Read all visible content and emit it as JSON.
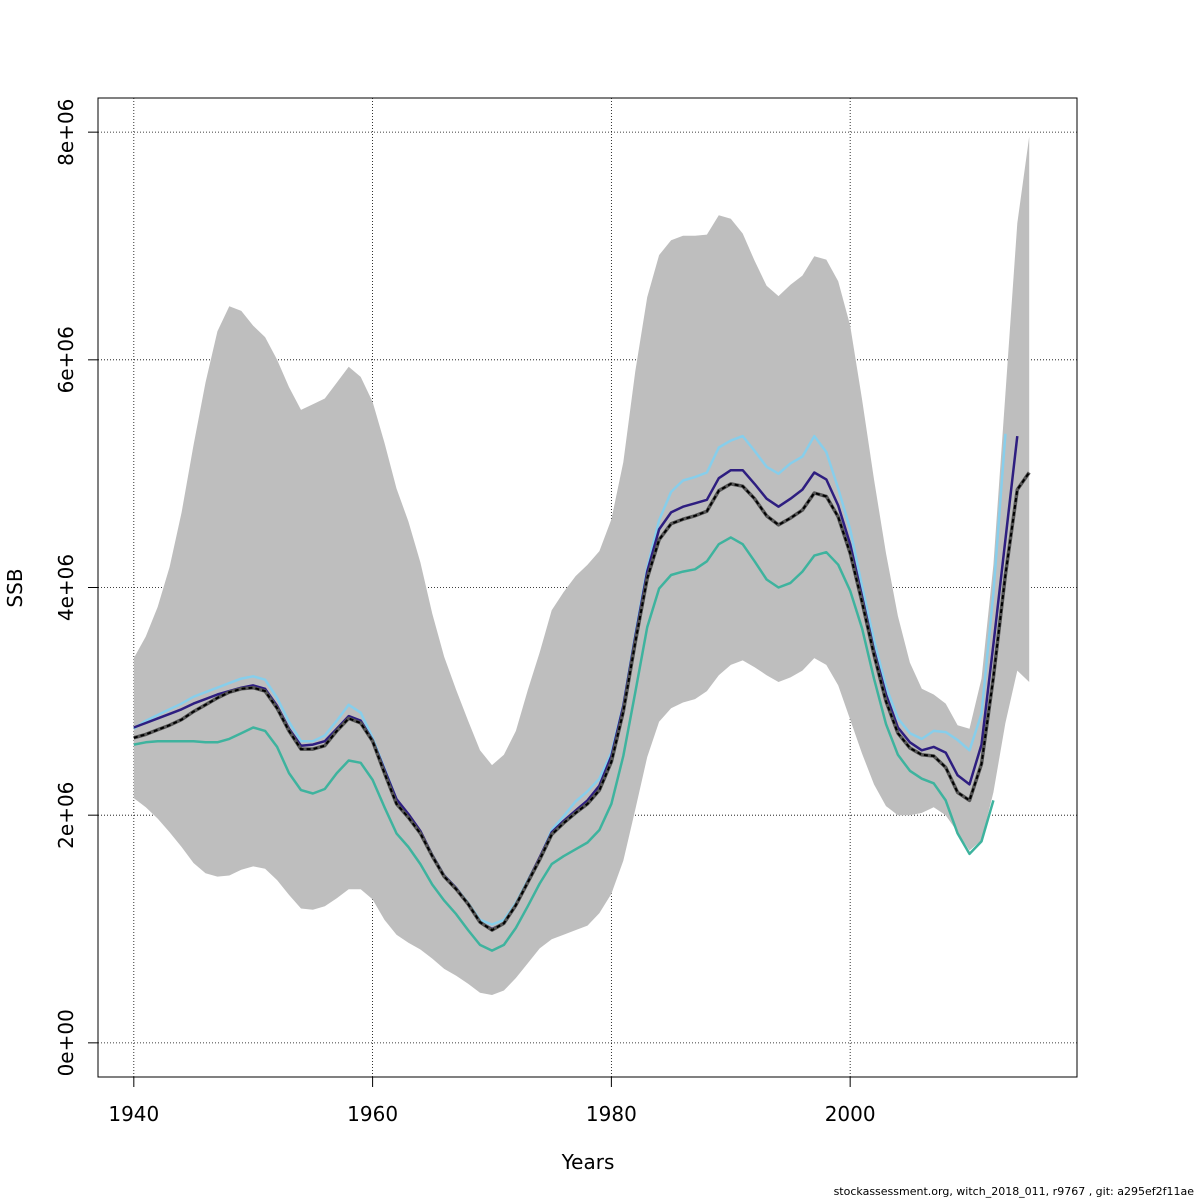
{
  "chart_data": {
    "type": "line",
    "xlabel": "Years",
    "ylabel": "SSB",
    "xlim": [
      1937,
      2019
    ],
    "ylim": [
      -300000,
      8300000
    ],
    "x_ticks": [
      1940,
      1960,
      1980,
      2000
    ],
    "y_ticks": [
      0,
      2000000,
      4000000,
      6000000,
      8000000
    ],
    "y_tick_labels": [
      "0e+00",
      "2e+06",
      "4e+06",
      "6e+06",
      "8e+06"
    ],
    "grid": true,
    "band": {
      "color": "#bebebe",
      "x": [
        1940,
        1941,
        1942,
        1943,
        1944,
        1945,
        1946,
        1947,
        1948,
        1949,
        1950,
        1951,
        1952,
        1953,
        1954,
        1955,
        1956,
        1957,
        1958,
        1959,
        1960,
        1961,
        1962,
        1963,
        1964,
        1965,
        1966,
        1967,
        1968,
        1969,
        1970,
        1971,
        1972,
        1973,
        1974,
        1975,
        1976,
        1977,
        1978,
        1979,
        1980,
        1981,
        1982,
        1983,
        1984,
        1985,
        1986,
        1987,
        1988,
        1989,
        1990,
        1991,
        1992,
        1993,
        1994,
        1995,
        1996,
        1997,
        1998,
        1999,
        2000,
        2001,
        2002,
        2003,
        2004,
        2005,
        2006,
        2007,
        2008,
        2009,
        2010,
        2011,
        2012,
        2013,
        2014,
        2015
      ],
      "upper": [
        3380000,
        3570000,
        3830000,
        4180000,
        4660000,
        5250000,
        5800000,
        6250000,
        6470000,
        6430000,
        6300000,
        6200000,
        6000000,
        5760000,
        5560000,
        5610000,
        5660000,
        5800000,
        5940000,
        5850000,
        5630000,
        5270000,
        4870000,
        4580000,
        4220000,
        3770000,
        3390000,
        3100000,
        2830000,
        2570000,
        2440000,
        2530000,
        2740000,
        3100000,
        3430000,
        3800000,
        3960000,
        4100000,
        4200000,
        4320000,
        4600000,
        5100000,
        5900000,
        6550000,
        6920000,
        7050000,
        7090000,
        7090000,
        7100000,
        7270000,
        7240000,
        7110000,
        6870000,
        6650000,
        6560000,
        6660000,
        6740000,
        6910000,
        6880000,
        6690000,
        6300000,
        5650000,
        4950000,
        4300000,
        3750000,
        3340000,
        3110000,
        3060000,
        2980000,
        2790000,
        2760000,
        3200000,
        4200000,
        5700000,
        7200000,
        7960000
      ],
      "lower": [
        2150000,
        2070000,
        1970000,
        1850000,
        1720000,
        1580000,
        1490000,
        1460000,
        1470000,
        1520000,
        1550000,
        1530000,
        1430000,
        1300000,
        1180000,
        1170000,
        1200000,
        1270000,
        1350000,
        1350000,
        1260000,
        1080000,
        950000,
        880000,
        820000,
        740000,
        650000,
        590000,
        520000,
        440000,
        420000,
        460000,
        570000,
        700000,
        830000,
        910000,
        950000,
        990000,
        1030000,
        1140000,
        1310000,
        1600000,
        2050000,
        2510000,
        2820000,
        2940000,
        2990000,
        3020000,
        3090000,
        3230000,
        3320000,
        3360000,
        3300000,
        3230000,
        3170000,
        3210000,
        3270000,
        3380000,
        3320000,
        3140000,
        2840000,
        2540000,
        2270000,
        2080000,
        2000000,
        2000000,
        2020000,
        2070000,
        2000000,
        1850000,
        1690000,
        1780000,
        2200000,
        2810000,
        3270000,
        3170000
      ]
    },
    "series": [
      {
        "color": "#87ceeb",
        "dash": false,
        "x": [
          1940,
          1941,
          1942,
          1943,
          1944,
          1945,
          1946,
          1947,
          1948,
          1949,
          1950,
          1951,
          1952,
          1953,
          1954,
          1955,
          1956,
          1957,
          1958,
          1959,
          1960,
          1961,
          1962,
          1963,
          1964,
          1965,
          1966,
          1967,
          1968,
          1969,
          1970,
          1971,
          1972,
          1973,
          1974,
          1975,
          1976,
          1977,
          1978,
          1979,
          1980,
          1981,
          1982,
          1983,
          1984,
          1985,
          1986,
          1987,
          1988,
          1989,
          1990,
          1991,
          1992,
          1993,
          1994,
          1995,
          1996,
          1997,
          1998,
          1999,
          2000,
          2001,
          2002,
          2003,
          2004,
          2005,
          2006,
          2007,
          2008,
          2009,
          2010,
          2011,
          2012,
          2013
        ],
        "y": [
          2760000,
          2830000,
          2880000,
          2930000,
          2980000,
          3040000,
          3080000,
          3120000,
          3160000,
          3200000,
          3220000,
          3190000,
          3030000,
          2820000,
          2650000,
          2650000,
          2700000,
          2830000,
          2970000,
          2900000,
          2680000,
          2410000,
          2140000,
          2000000,
          1850000,
          1650000,
          1470000,
          1360000,
          1230000,
          1080000,
          1040000,
          1080000,
          1230000,
          1430000,
          1620000,
          1870000,
          1990000,
          2120000,
          2210000,
          2320000,
          2550000,
          2970000,
          3590000,
          4170000,
          4590000,
          4840000,
          4940000,
          4970000,
          5010000,
          5230000,
          5290000,
          5330000,
          5200000,
          5060000,
          5000000,
          5090000,
          5150000,
          5330000,
          5190000,
          4870000,
          4510000,
          4010000,
          3540000,
          3130000,
          2850000,
          2720000,
          2670000,
          2740000,
          2730000,
          2660000,
          2570000,
          2890000,
          3950000,
          5350000
        ]
      },
      {
        "color": "#3eb39e",
        "dash": false,
        "x": [
          1940,
          1941,
          1942,
          1943,
          1944,
          1945,
          1946,
          1947,
          1948,
          1949,
          1950,
          1951,
          1952,
          1953,
          1954,
          1955,
          1956,
          1957,
          1958,
          1959,
          1960,
          1961,
          1962,
          1963,
          1964,
          1965,
          1966,
          1967,
          1968,
          1969,
          1970,
          1971,
          1972,
          1973,
          1974,
          1975,
          1976,
          1977,
          1978,
          1979,
          1980,
          1981,
          1982,
          1983,
          1984,
          1985,
          1986,
          1987,
          1988,
          1989,
          1990,
          1991,
          1992,
          1993,
          1994,
          1995,
          1996,
          1997,
          1998,
          1999,
          2000,
          2001,
          2002,
          2003,
          2004,
          2005,
          2006,
          2007,
          2008,
          2009,
          2010,
          2011,
          2012
        ],
        "y": [
          2620000,
          2640000,
          2650000,
          2650000,
          2650000,
          2650000,
          2640000,
          2640000,
          2670000,
          2720000,
          2770000,
          2740000,
          2600000,
          2370000,
          2220000,
          2190000,
          2230000,
          2370000,
          2480000,
          2460000,
          2310000,
          2070000,
          1840000,
          1720000,
          1570000,
          1390000,
          1250000,
          1130000,
          990000,
          860000,
          810000,
          860000,
          1010000,
          1200000,
          1400000,
          1570000,
          1640000,
          1700000,
          1760000,
          1870000,
          2100000,
          2520000,
          3080000,
          3650000,
          3990000,
          4110000,
          4140000,
          4160000,
          4230000,
          4380000,
          4440000,
          4380000,
          4230000,
          4070000,
          4000000,
          4040000,
          4140000,
          4280000,
          4310000,
          4200000,
          3970000,
          3640000,
          3200000,
          2800000,
          2530000,
          2390000,
          2320000,
          2280000,
          2130000,
          1840000,
          1660000,
          1770000,
          2130000
        ]
      },
      {
        "color": "#2e1e80",
        "dash": false,
        "x": [
          1940,
          1941,
          1942,
          1943,
          1944,
          1945,
          1946,
          1947,
          1948,
          1949,
          1950,
          1951,
          1952,
          1953,
          1954,
          1955,
          1956,
          1957,
          1958,
          1959,
          1960,
          1961,
          1962,
          1963,
          1964,
          1965,
          1966,
          1967,
          1968,
          1969,
          1970,
          1971,
          1972,
          1973,
          1974,
          1975,
          1976,
          1977,
          1978,
          1979,
          1980,
          1981,
          1982,
          1983,
          1984,
          1985,
          1986,
          1987,
          1988,
          1989,
          1990,
          1991,
          1992,
          1993,
          1994,
          1995,
          1996,
          1997,
          1998,
          1999,
          2000,
          2001,
          2002,
          2003,
          2004,
          2005,
          2006,
          2007,
          2008,
          2009,
          2010,
          2011,
          2012,
          2013,
          2014
        ],
        "y": [
          2770000,
          2810000,
          2850000,
          2890000,
          2930000,
          2980000,
          3020000,
          3060000,
          3090000,
          3120000,
          3140000,
          3110000,
          2960000,
          2760000,
          2610000,
          2620000,
          2650000,
          2760000,
          2870000,
          2830000,
          2660000,
          2400000,
          2140000,
          2010000,
          1860000,
          1650000,
          1470000,
          1360000,
          1220000,
          1060000,
          1000000,
          1050000,
          1210000,
          1420000,
          1630000,
          1850000,
          1950000,
          2040000,
          2130000,
          2260000,
          2520000,
          2960000,
          3570000,
          4140000,
          4510000,
          4660000,
          4710000,
          4740000,
          4770000,
          4960000,
          5030000,
          5030000,
          4910000,
          4780000,
          4710000,
          4780000,
          4860000,
          5010000,
          4950000,
          4720000,
          4380000,
          3920000,
          3450000,
          3060000,
          2770000,
          2640000,
          2570000,
          2600000,
          2550000,
          2350000,
          2270000,
          2620000,
          3500000,
          4420000,
          5330000
        ]
      },
      {
        "color": "#000000",
        "dash": true,
        "x": [
          1940,
          1941,
          1942,
          1943,
          1944,
          1945,
          1946,
          1947,
          1948,
          1949,
          1950,
          1951,
          1952,
          1953,
          1954,
          1955,
          1956,
          1957,
          1958,
          1959,
          1960,
          1961,
          1962,
          1963,
          1964,
          1965,
          1966,
          1967,
          1968,
          1969,
          1970,
          1971,
          1972,
          1973,
          1974,
          1975,
          1976,
          1977,
          1978,
          1979,
          1980,
          1981,
          1982,
          1983,
          1984,
          1985,
          1986,
          1987,
          1988,
          1989,
          1990,
          1991,
          1992,
          1993,
          1994,
          1995,
          1996,
          1997,
          1998,
          1999,
          2000,
          2001,
          2002,
          2003,
          2004,
          2005,
          2006,
          2007,
          2008,
          2009,
          2010,
          2011,
          2012,
          2013,
          2014,
          2015
        ],
        "y": [
          2680000,
          2710000,
          2750000,
          2790000,
          2840000,
          2910000,
          2970000,
          3030000,
          3080000,
          3110000,
          3120000,
          3090000,
          2940000,
          2740000,
          2580000,
          2580000,
          2610000,
          2740000,
          2850000,
          2810000,
          2650000,
          2370000,
          2100000,
          1980000,
          1840000,
          1640000,
          1460000,
          1350000,
          1220000,
          1060000,
          990000,
          1050000,
          1210000,
          1410000,
          1610000,
          1830000,
          1930000,
          2020000,
          2100000,
          2220000,
          2470000,
          2910000,
          3520000,
          4080000,
          4420000,
          4560000,
          4600000,
          4630000,
          4670000,
          4850000,
          4910000,
          4890000,
          4780000,
          4630000,
          4550000,
          4610000,
          4680000,
          4830000,
          4800000,
          4620000,
          4300000,
          3870000,
          3410000,
          3000000,
          2720000,
          2590000,
          2530000,
          2520000,
          2420000,
          2200000,
          2130000,
          2450000,
          3210000,
          4110000,
          4860000,
          5010000
        ]
      }
    ]
  },
  "footer_text": "stockassessment.org, witch_2018_011, r9767 , git: a295ef2f11ae"
}
